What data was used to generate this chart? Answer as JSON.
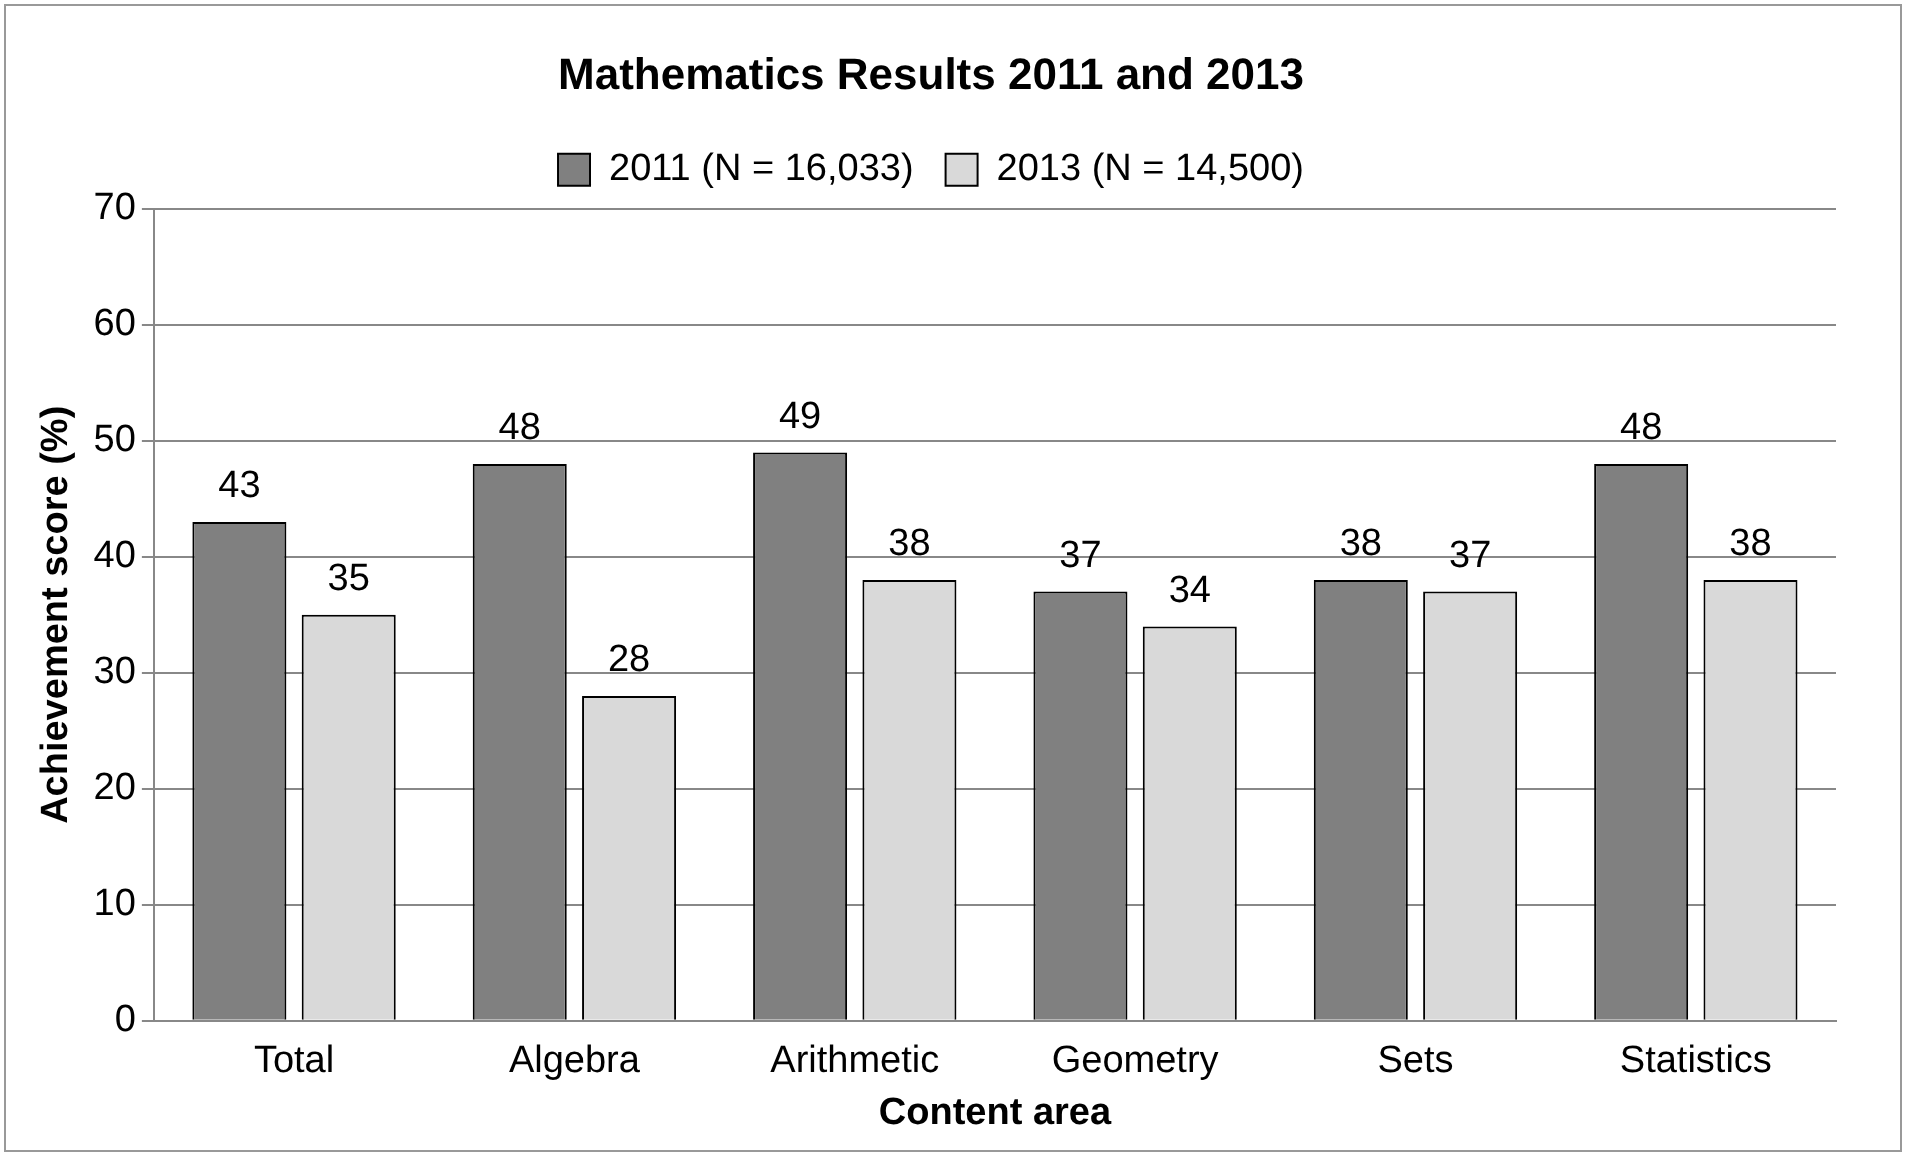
{
  "chart_data": {
    "type": "bar",
    "title": "Mathematics Results 2011 and 2013",
    "xlabel": "Content area",
    "ylabel": "Achievement score (%)",
    "categories": [
      "Total",
      "Algebra",
      "Arithmetic",
      "Geometry",
      "Sets",
      "Statistics"
    ],
    "series": [
      {
        "name": "2011 (N = 16,033)",
        "color": "#808080",
        "values": [
          43,
          48,
          49,
          37,
          38,
          48
        ]
      },
      {
        "name": "2013 (N = 14,500)",
        "color": "#d9d9d9",
        "values": [
          35,
          28,
          38,
          34,
          37,
          38
        ]
      }
    ],
    "ylim": [
      0,
      70
    ],
    "yticks": [
      0,
      10,
      20,
      30,
      40,
      50,
      60,
      70
    ],
    "grid": "y",
    "legend": "top",
    "data_labels": true
  }
}
